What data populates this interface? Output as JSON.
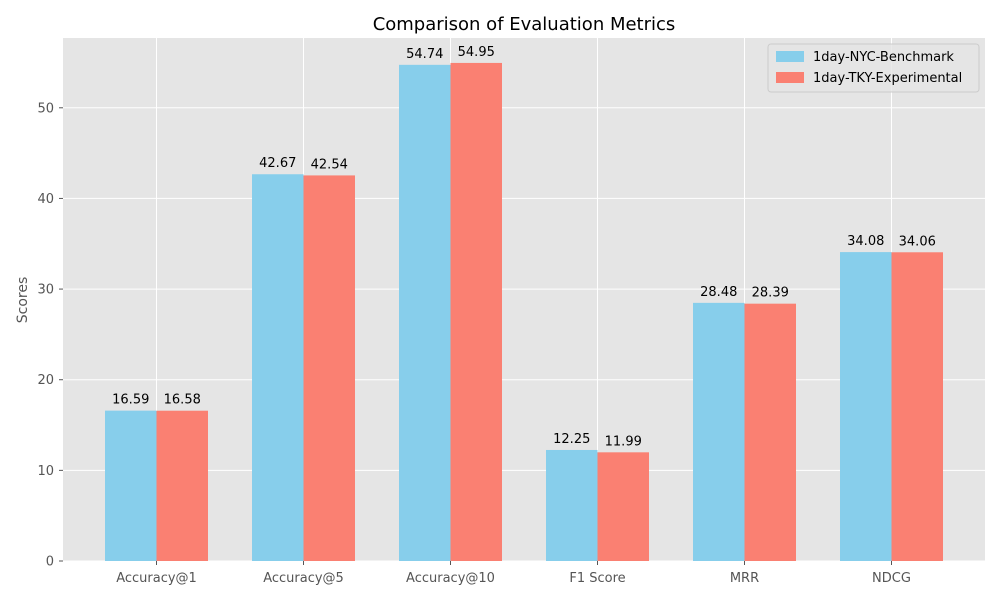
{
  "chart_data": {
    "type": "bar",
    "title": "Comparison of Evaluation Metrics",
    "xlabel": "",
    "ylabel": "Scores",
    "categories": [
      "Accuracy@1",
      "Accuracy@5",
      "Accuracy@10",
      "F1 Score",
      "MRR",
      "NDCG"
    ],
    "series": [
      {
        "name": "1day-NYC-Benchmark",
        "color": "#87ceeb",
        "values": [
          16.59,
          42.67,
          54.74,
          12.25,
          28.48,
          34.08
        ],
        "labels": [
          "16.59",
          "42.67",
          "54.74",
          "12.25",
          "28.48",
          "34.08"
        ]
      },
      {
        "name": "1day-TKY-Experimental",
        "color": "#fa8072",
        "values": [
          16.58,
          42.54,
          54.95,
          11.99,
          28.39,
          34.06
        ],
        "labels": [
          "16.58",
          "42.54",
          "54.95",
          "11.99",
          "28.39",
          "34.06"
        ]
      }
    ],
    "ylim": [
      0,
      57.7
    ],
    "yticks": [
      0,
      10,
      20,
      30,
      40,
      50
    ],
    "ytick_labels": [
      "0",
      "10",
      "20",
      "30",
      "40",
      "50"
    ],
    "grid": true,
    "legend_position": "top-right",
    "background_color": "#e5e5e5",
    "grid_color": "#ffffff"
  }
}
